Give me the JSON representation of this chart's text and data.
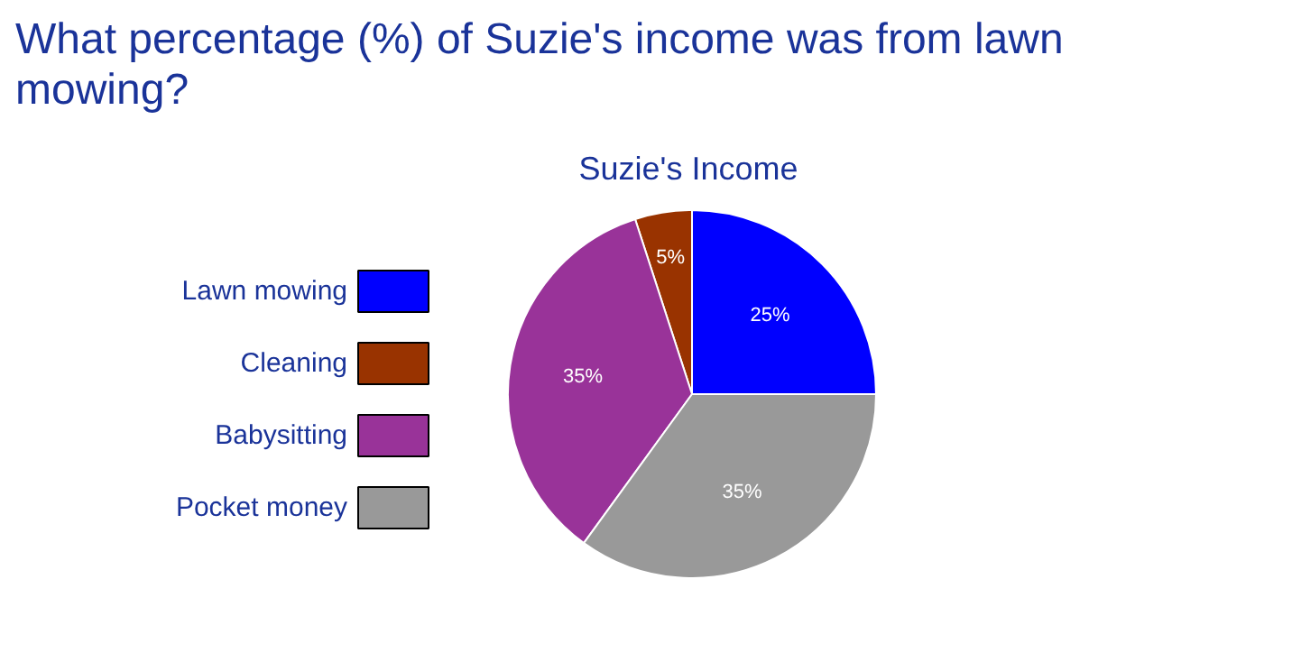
{
  "chart_data": {
    "type": "pie",
    "title": "What percentage (%) of Suzie's income was from lawn mowing?",
    "subtitle": "Suzie's Income",
    "categories": [
      "Lawn mowing",
      "Cleaning",
      "Babysitting",
      "Pocket money"
    ],
    "values": [
      25,
      5,
      35,
      35
    ],
    "colors": [
      "#0000ff",
      "#993300",
      "#993399",
      "#999999"
    ],
    "value_labels": [
      "25%",
      "5%",
      "35%",
      "35%"
    ],
    "legend": "left"
  }
}
